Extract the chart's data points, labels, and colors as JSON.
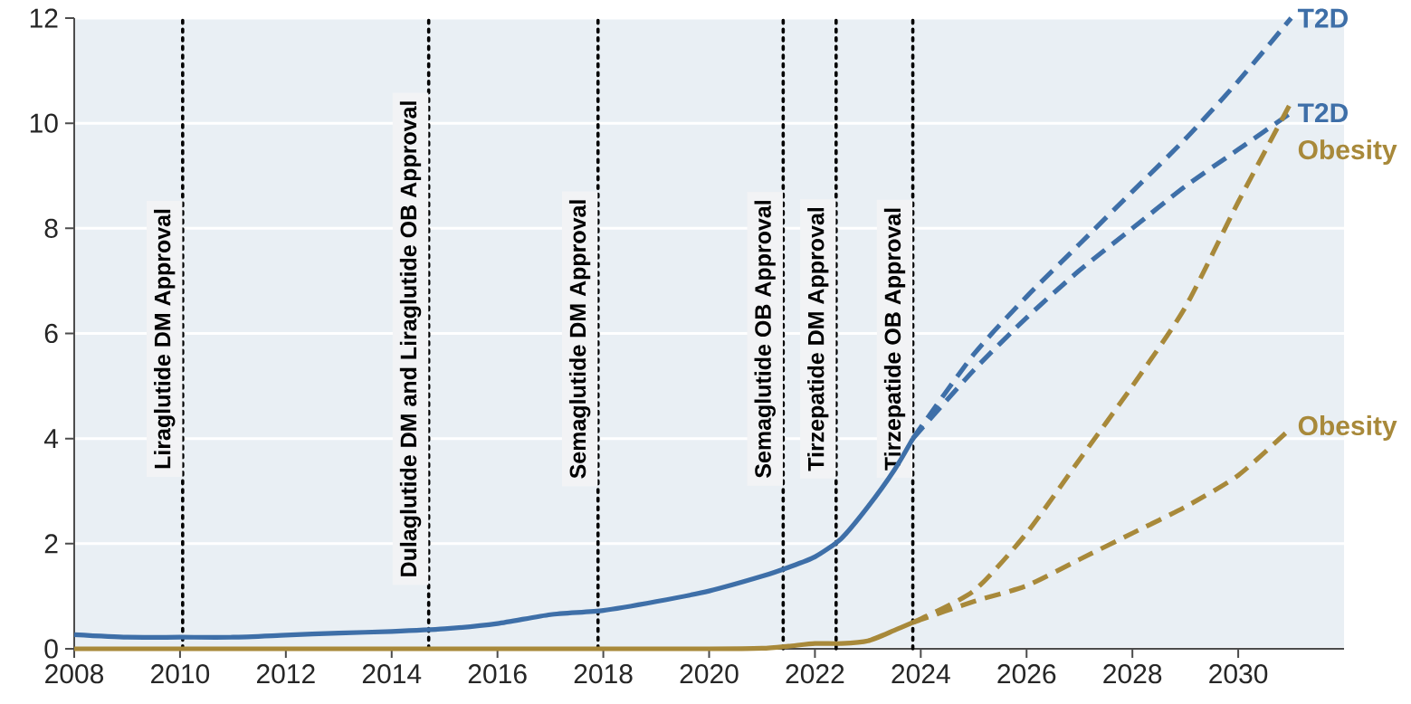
{
  "chart_data": {
    "type": "line",
    "xlim": [
      2008,
      2032
    ],
    "ylim": [
      0,
      12
    ],
    "xticks": [
      2008,
      2010,
      2012,
      2014,
      2016,
      2018,
      2020,
      2022,
      2024,
      2026,
      2028,
      2030
    ],
    "yticks": [
      0,
      2,
      4,
      6,
      8,
      10,
      12
    ],
    "grid": "y",
    "series": [
      {
        "color": "#3e6fa8",
        "line_style": "solid",
        "x": [
          2008,
          2009,
          2010,
          2011,
          2012,
          2013,
          2014,
          2015,
          2016,
          2017,
          2018,
          2019,
          2020,
          2021,
          2021.5,
          2022,
          2022.5,
          2023,
          2023.5,
          2023.85
        ],
        "values": [
          0.27,
          0.22,
          0.22,
          0.22,
          0.26,
          0.3,
          0.33,
          0.38,
          0.48,
          0.65,
          0.73,
          0.9,
          1.1,
          1.38,
          1.55,
          1.75,
          2.1,
          2.7,
          3.4,
          4.0
        ]
      },
      {
        "color": "#a8893a",
        "line_style": "solid",
        "x": [
          2008,
          2012,
          2016,
          2020,
          2021,
          2021.5,
          2022,
          2022.5,
          2023,
          2023.5,
          2023.85
        ],
        "values": [
          0,
          0,
          0,
          0,
          0.01,
          0.05,
          0.1,
          0.1,
          0.15,
          0.35,
          0.5
        ]
      },
      {
        "name": "T2D",
        "color": "#3e6fa8",
        "line_style": "dashed",
        "x": [
          2023.85,
          2025,
          2026,
          2027,
          2028,
          2029,
          2030,
          2031
        ],
        "values": [
          4.0,
          5.6,
          6.7,
          7.7,
          8.7,
          9.7,
          10.8,
          12.0
        ]
      },
      {
        "name": "T2D",
        "color": "#3e6fa8",
        "line_style": "dashed",
        "x": [
          2023.85,
          2025,
          2026,
          2027,
          2028,
          2029,
          2030,
          2031
        ],
        "values": [
          4.0,
          5.3,
          6.3,
          7.2,
          8.0,
          8.8,
          9.5,
          10.2
        ]
      },
      {
        "name": "Obesity",
        "color": "#a8893a",
        "line_style": "dashed",
        "x": [
          2023.85,
          2025,
          2026,
          2027,
          2028,
          2029,
          2030,
          2031
        ],
        "values": [
          0.5,
          1.1,
          2.2,
          3.6,
          5.0,
          6.5,
          8.5,
          10.4
        ]
      },
      {
        "name": "Obesity",
        "color": "#a8893a",
        "line_style": "dashed",
        "x": [
          2023.85,
          2025,
          2026,
          2027,
          2028,
          2029,
          2030,
          2031
        ],
        "values": [
          0.5,
          0.9,
          1.2,
          1.7,
          2.2,
          2.7,
          3.3,
          4.2
        ]
      }
    ],
    "ref_lines": [
      {
        "axis": "x",
        "value": 2010.05,
        "label": "Liraglutide DM Approval",
        "color": "#000000",
        "line_style": "dotted"
      },
      {
        "axis": "x",
        "value": 2014.7,
        "label": "Dulaglutide DM and Liraglutide OB Approval",
        "color": "#000000",
        "line_style": "dotted"
      },
      {
        "axis": "x",
        "value": 2017.9,
        "label": "Semaglutide DM Approval",
        "color": "#000000",
        "line_style": "dotted"
      },
      {
        "axis": "x",
        "value": 2021.4,
        "label": "Semaglutide OB Approval",
        "color": "#000000",
        "line_style": "dotted"
      },
      {
        "axis": "x",
        "value": 2022.4,
        "label": "Tirzepatide DM Approval",
        "color": "#000000",
        "line_style": "dotted"
      },
      {
        "axis": "x",
        "value": 2023.85,
        "label": "Tirzepatide OB Approval",
        "color": "#000000",
        "line_style": "dotted"
      }
    ]
  }
}
